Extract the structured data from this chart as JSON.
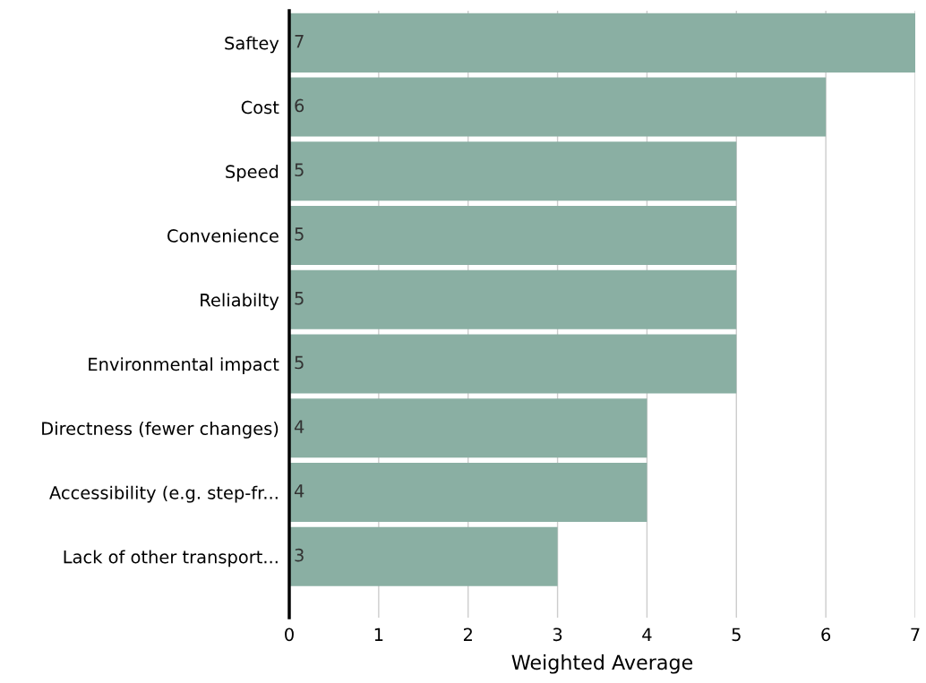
{
  "chart_data": {
    "type": "bar",
    "orientation": "horizontal",
    "xlabel": "Weighted Average",
    "categories": [
      "Saftey",
      "Cost",
      "Speed",
      "Convenience",
      "Reliabilty",
      "Environmental impact",
      "Directness (fewer changes)",
      "Accessibility (e.g. step-fr...",
      "Lack of other transport..."
    ],
    "values": [
      7,
      6,
      5,
      5,
      5,
      5,
      4,
      4,
      3
    ],
    "color": "#8aafa3",
    "xlim": [
      0,
      7
    ],
    "xticks": [
      0,
      1,
      2,
      3,
      4,
      5,
      6,
      7
    ],
    "grid": "x",
    "data_labels": true
  }
}
